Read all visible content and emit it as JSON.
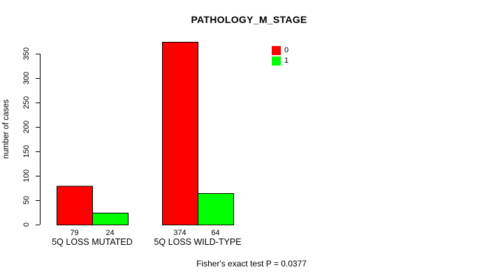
{
  "title": "PATHOLOGY_M_STAGE",
  "chart_data": {
    "type": "bar",
    "grouped": true,
    "categories": [
      "5Q LOSS MUTATED",
      "5Q LOSS WILD-TYPE"
    ],
    "series": [
      {
        "name": "0",
        "color": "#FF0000",
        "values": [
          79,
          374
        ]
      },
      {
        "name": "1",
        "color": "#00FF00",
        "values": [
          24,
          64
        ]
      }
    ],
    "ylabel": "number of cases",
    "xlabel": "",
    "yticks": [
      0,
      50,
      100,
      150,
      200,
      250,
      300,
      350
    ],
    "ylim": [
      0,
      375
    ],
    "grid": false,
    "legend_position": "top-right",
    "bar_value_labels": true
  },
  "footer": {
    "note": "Fisher's exact test P = 0.0377"
  },
  "colors": {
    "background": "#FFFFFF",
    "axis": "#000000",
    "text": "#000000"
  }
}
